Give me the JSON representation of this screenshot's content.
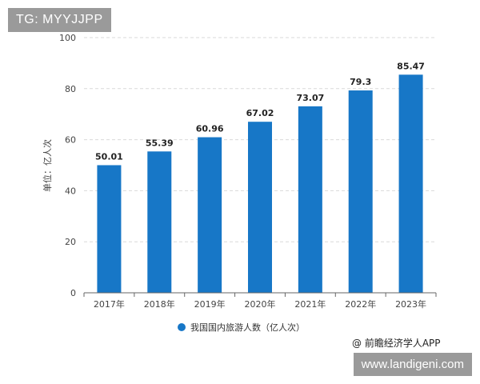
{
  "top_tag": "TG: MYYJJPP",
  "bottom_tag": "www.landigeni.com",
  "credit": "@ 前瞻经济学人APP",
  "colors": {
    "bar": "#1777c7",
    "grid": "#d9d9d9",
    "axis": "#666666"
  },
  "chart_data": {
    "type": "bar",
    "categories": [
      "2017年",
      "2018年",
      "2019年",
      "2020年",
      "2021年",
      "2022年",
      "2023年"
    ],
    "series": [
      {
        "name": "我国国内旅游人数（亿人次）",
        "values": [
          50.01,
          55.39,
          60.96,
          67.02,
          73.07,
          79.3,
          85.47
        ]
      }
    ],
    "data_labels": [
      "50.01",
      "55.39",
      "60.96",
      "67.02",
      "73.07",
      "79.3",
      "85.47"
    ],
    "ylabel": "单位：亿人次",
    "ylim": [
      0,
      100
    ],
    "yticks": [
      0,
      20,
      40,
      60,
      80,
      100
    ],
    "grid": true,
    "legend_position": "bottom-center"
  }
}
